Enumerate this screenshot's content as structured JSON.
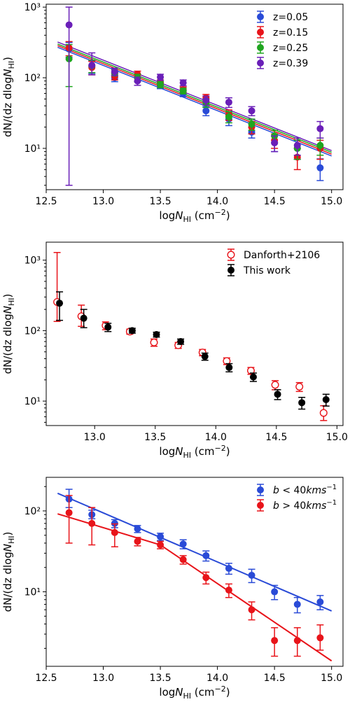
{
  "chart_data": [
    {
      "type": "scatter",
      "panel": "top",
      "xlabel_main": "log",
      "xlabel_italic": "N",
      "xlabel_sub": "HI",
      "xlabel_unit": "(cm",
      "xlabel_exp": "−2",
      "ylabel_main": "dN/(dz dlog",
      "ylabel_italic": "N",
      "ylabel_sub": "HI",
      "xlim": [
        12.5,
        15.1
      ],
      "ylim": [
        2.6,
        1100
      ],
      "yscale": "log",
      "xticks": [
        "12.5",
        "13.0",
        "13.5",
        "14.0",
        "14.5",
        "15.0"
      ],
      "yticks": [
        "10¹",
        "10²",
        "10³"
      ],
      "legend_position": "top-right",
      "x": [
        12.7,
        12.9,
        13.1,
        13.3,
        13.5,
        13.7,
        13.9,
        14.1,
        14.3,
        14.5,
        14.7,
        14.9
      ],
      "series": [
        {
          "name": "z=0.05",
          "color": "#2a4bd7",
          "values": [
            255,
            145,
            100,
            100,
            78,
            60,
            34,
            26,
            17,
            12,
            10,
            5.3
          ],
          "err_low": [
            60,
            30,
            12,
            12,
            8,
            6,
            5,
            5,
            3,
            3,
            3,
            1.8
          ],
          "err_high": [
            60,
            30,
            12,
            12,
            8,
            6,
            5,
            5,
            3,
            3,
            3,
            1.8
          ],
          "fit": [
            270,
            7.8
          ]
        },
        {
          "name": "z=0.15",
          "color": "#e8141a",
          "values": [
            265,
            140,
            105,
            112,
            85,
            68,
            52,
            30,
            20,
            13,
            7.5,
            10
          ],
          "err_low": [
            60,
            30,
            12,
            12,
            8,
            6,
            6,
            5,
            4,
            3,
            2.5,
            3
          ],
          "err_high": [
            60,
            30,
            12,
            12,
            8,
            6,
            6,
            5,
            4,
            3,
            2.5,
            3
          ],
          "fit": [
            285,
            8.3
          ]
        },
        {
          "name": "z=0.25",
          "color": "#20a520",
          "values": [
            185,
            148,
            118,
            100,
            80,
            65,
            44,
            28,
            22,
            15,
            10,
            11
          ],
          "err_low": [
            110,
            30,
            12,
            12,
            8,
            6,
            6,
            5,
            4,
            3,
            3,
            3
          ],
          "err_high": [
            110,
            30,
            12,
            12,
            8,
            6,
            6,
            5,
            4,
            3,
            3,
            3
          ],
          "fit": [
            300,
            8.8
          ]
        },
        {
          "name": "z=0.39",
          "color": "#6a1fb8",
          "values": [
            560,
            150,
            122,
            90,
            102,
            85,
            48,
            45,
            34,
            12,
            11,
            19
          ],
          "err_low": [
            557,
            40,
            15,
            12,
            10,
            8,
            7,
            7,
            5,
            3,
            3,
            5
          ],
          "err_high": [
            440,
            75,
            15,
            12,
            10,
            8,
            7,
            7,
            5,
            3,
            3,
            5
          ],
          "fit": [
            320,
            9.3
          ]
        }
      ]
    },
    {
      "type": "scatter",
      "panel": "middle",
      "xlabel_main": "log",
      "xlabel_italic": "N",
      "xlabel_sub": "HI",
      "xlabel_unit": "(cm",
      "xlabel_exp": "−2",
      "ylabel_main": "dN/(dz dlog",
      "ylabel_italic": "N",
      "ylabel_sub": "HI",
      "xlim": [
        12.6,
        15.05
      ],
      "ylim": [
        4.5,
        1800
      ],
      "yscale": "log",
      "xticks": [
        "13.0",
        "13.5",
        "14.0",
        "14.5",
        "15.0"
      ],
      "yticks": [
        "10¹",
        "10²",
        "10³"
      ],
      "legend_position": "top-right",
      "series": [
        {
          "name": "Danforth+2106",
          "color": "#e8141a",
          "marker": "open",
          "x": [
            12.69,
            12.89,
            13.09,
            13.29,
            13.49,
            13.69,
            13.89,
            14.09,
            14.29,
            14.49,
            14.69,
            14.89
          ],
          "values": [
            255,
            160,
            118,
            97,
            68,
            62,
            49,
            37,
            27,
            17,
            16,
            6.8
          ],
          "err_low": [
            120,
            45,
            15,
            8,
            8,
            6,
            5,
            4,
            3,
            2.5,
            2.3,
            1.5
          ],
          "err_high": [
            1030,
            70,
            15,
            8,
            8,
            6,
            5,
            4,
            3,
            2.5,
            2.3,
            1.8
          ]
        },
        {
          "name": "This work",
          "color": "#000000",
          "marker": "filled",
          "x": [
            12.71,
            12.91,
            13.11,
            13.31,
            13.51,
            13.71,
            13.91,
            14.11,
            14.31,
            14.51,
            14.71,
            14.91
          ],
          "values": [
            245,
            150,
            112,
            100,
            88,
            70,
            43,
            30,
            22,
            12.5,
            9.5,
            10.5
          ],
          "err_low": [
            105,
            40,
            15,
            8,
            7,
            6,
            5,
            4,
            3,
            2,
            1.8,
            2
          ],
          "err_high": [
            110,
            50,
            15,
            8,
            7,
            6,
            5,
            4,
            3,
            2,
            1.8,
            2
          ]
        }
      ]
    },
    {
      "type": "scatter",
      "panel": "bottom",
      "xlabel_main": "log",
      "xlabel_italic": "N",
      "xlabel_sub": "HI",
      "xlabel_unit": "(cm",
      "xlabel_exp": "−2",
      "ylabel_main": "dN/(dz dlog",
      "ylabel_italic": "N",
      "ylabel_sub": "HI",
      "xlim": [
        12.5,
        15.1
      ],
      "ylim": [
        1.2,
        260
      ],
      "yscale": "log",
      "xticks": [
        "12.5",
        "13.0",
        "13.5",
        "14.0",
        "14.5",
        "15.0"
      ],
      "yticks": [
        "10¹",
        "10²"
      ],
      "legend_position": "top-right",
      "x": [
        12.7,
        12.9,
        13.1,
        13.3,
        13.5,
        13.7,
        13.9,
        14.1,
        14.3,
        14.5,
        14.7,
        14.9
      ],
      "series": [
        {
          "name_prefix": "b",
          "name_op": " < 40",
          "name_unit": "kms",
          "name_exp": "−1",
          "color": "#2a4bd7",
          "values": [
            140,
            90,
            70,
            60,
            48,
            39,
            28,
            19.5,
            16,
            10,
            7,
            7.5
          ],
          "err_low": [
            30,
            10,
            8,
            6,
            5,
            5,
            4,
            3,
            3,
            2,
            1.5,
            1.5
          ],
          "err_high": [
            45,
            12,
            8,
            6,
            5,
            5,
            4,
            3,
            3,
            2,
            1.5,
            1.5
          ],
          "fit_x": [
            12.6,
            15.0
          ],
          "fit_y": [
            165,
            5.8
          ]
        },
        {
          "name_prefix": "b",
          "name_op": " > 40",
          "name_unit": "kms",
          "name_exp": "−1",
          "color": "#e8141a",
          "values": [
            95,
            70,
            54,
            42,
            38,
            25,
            15,
            10.5,
            6,
            2.5,
            2.5,
            2.7
          ],
          "err_low": [
            55,
            32,
            18,
            5,
            4,
            3,
            2.5,
            2,
            1.5,
            0.9,
            0.9,
            0.8
          ],
          "err_high": [
            60,
            40,
            15,
            5,
            4,
            3,
            2.5,
            2,
            1.5,
            1.1,
            1.1,
            1.2
          ],
          "fit_x": [
            12.6,
            13.5,
            15.0
          ],
          "fit_y": [
            92,
            38,
            1.4
          ]
        }
      ]
    }
  ]
}
